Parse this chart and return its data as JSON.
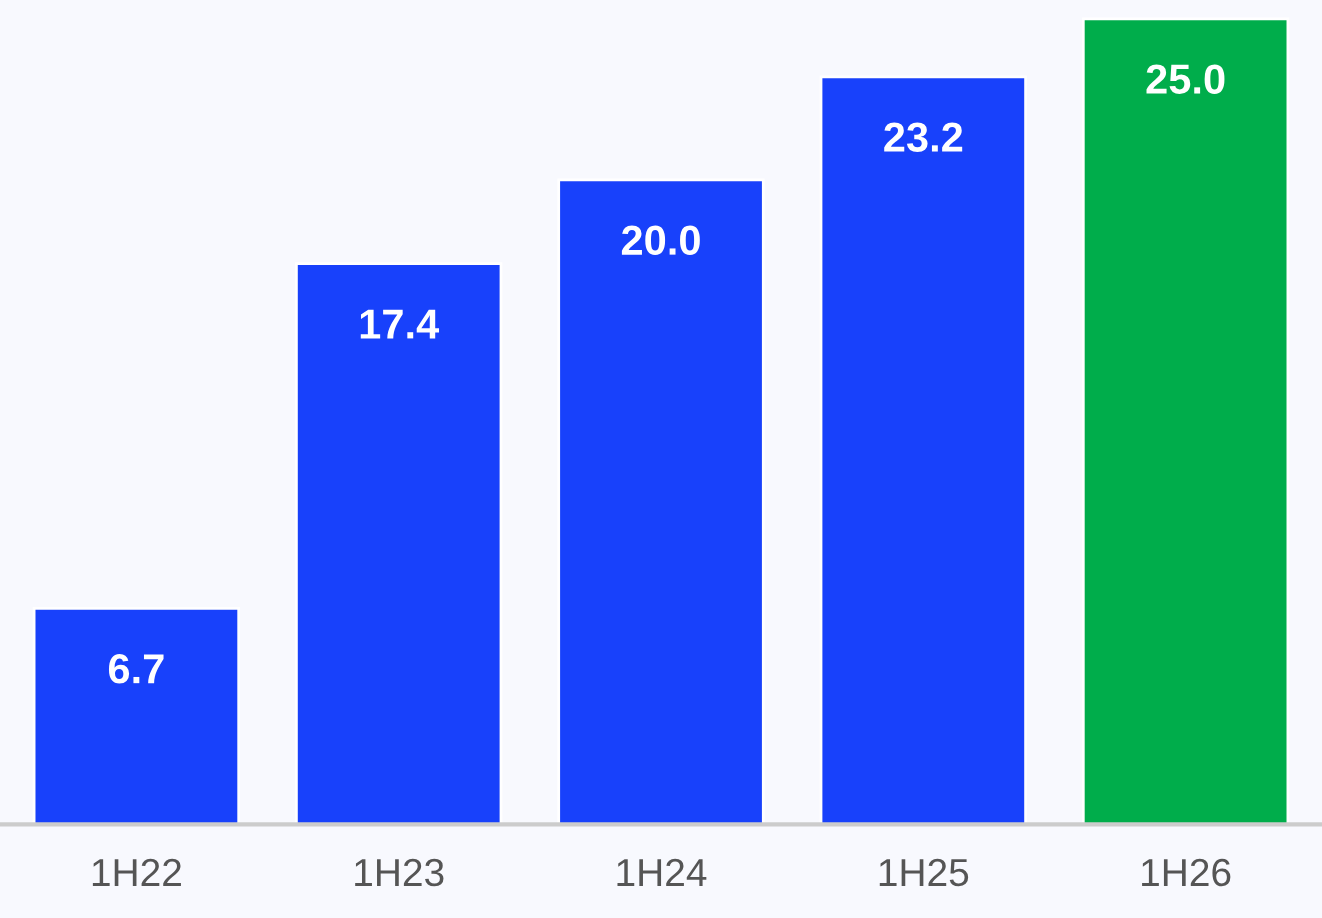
{
  "chart_data": {
    "type": "bar",
    "categories": [
      "1H22",
      "1H23",
      "1H24",
      "1H25",
      "1H26"
    ],
    "values": [
      6.7,
      17.4,
      20.0,
      23.2,
      25.0
    ],
    "value_labels": [
      "6.7",
      "17.4",
      "20.0",
      "23.2",
      "25.0"
    ],
    "colors": [
      "#1841fb",
      "#1841fb",
      "#1841fb",
      "#1841fb",
      "#00ad4b"
    ],
    "grid": false,
    "legend": false
  }
}
